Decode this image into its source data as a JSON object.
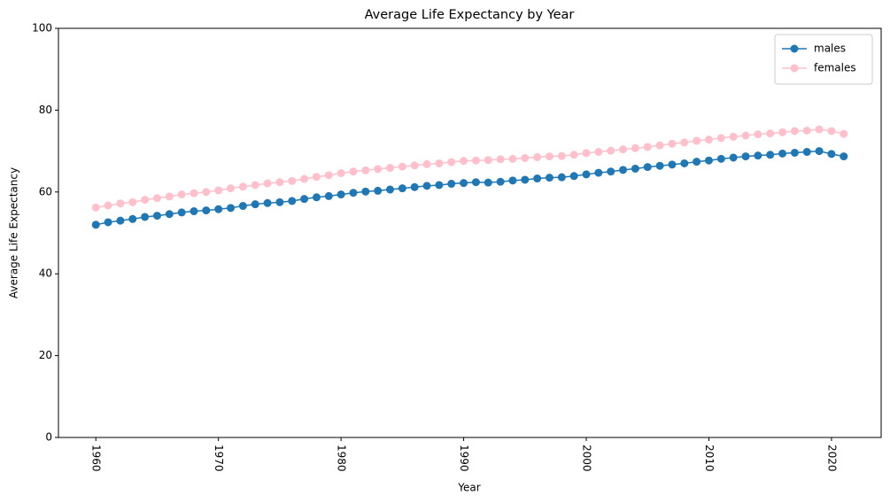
{
  "chart_data": {
    "type": "line",
    "title": "Average Life Expectancy by Year",
    "xlabel": "Year",
    "ylabel": "Average Life Expectancy",
    "x": [
      1960,
      1961,
      1962,
      1963,
      1964,
      1965,
      1966,
      1967,
      1968,
      1969,
      1970,
      1971,
      1972,
      1973,
      1974,
      1975,
      1976,
      1977,
      1978,
      1979,
      1980,
      1981,
      1982,
      1983,
      1984,
      1985,
      1986,
      1987,
      1988,
      1989,
      1990,
      1991,
      1992,
      1993,
      1994,
      1995,
      1996,
      1997,
      1998,
      1999,
      2000,
      2001,
      2002,
      2003,
      2004,
      2005,
      2006,
      2007,
      2008,
      2009,
      2010,
      2011,
      2012,
      2013,
      2014,
      2015,
      2016,
      2017,
      2018,
      2019,
      2020,
      2021
    ],
    "series": [
      {
        "name": "males",
        "color": "#1f77b4",
        "values": [
          52.0,
          52.6,
          53.0,
          53.4,
          53.9,
          54.2,
          54.6,
          55.0,
          55.3,
          55.5,
          55.8,
          56.1,
          56.6,
          57.0,
          57.3,
          57.5,
          57.8,
          58.3,
          58.7,
          59.0,
          59.4,
          59.8,
          60.1,
          60.3,
          60.6,
          60.9,
          61.2,
          61.5,
          61.7,
          62.0,
          62.2,
          62.4,
          62.3,
          62.5,
          62.8,
          63.0,
          63.3,
          63.5,
          63.6,
          63.9,
          64.3,
          64.7,
          65.0,
          65.4,
          65.7,
          66.1,
          66.4,
          66.7,
          67.0,
          67.4,
          67.7,
          68.1,
          68.4,
          68.7,
          68.9,
          69.1,
          69.4,
          69.6,
          69.8,
          70.0,
          69.3,
          68.7
        ]
      },
      {
        "name": "females",
        "color": "#ffc0cb",
        "values": [
          56.2,
          56.7,
          57.2,
          57.5,
          58.1,
          58.5,
          58.9,
          59.4,
          59.7,
          60.0,
          60.4,
          60.9,
          61.3,
          61.7,
          62.1,
          62.4,
          62.7,
          63.2,
          63.7,
          64.1,
          64.6,
          65.0,
          65.3,
          65.6,
          65.9,
          66.2,
          66.5,
          66.8,
          67.0,
          67.3,
          67.6,
          67.7,
          67.8,
          68.0,
          68.1,
          68.3,
          68.5,
          68.7,
          68.8,
          69.1,
          69.5,
          69.8,
          70.1,
          70.4,
          70.7,
          71.0,
          71.4,
          71.8,
          72.1,
          72.5,
          72.8,
          73.2,
          73.5,
          73.8,
          74.1,
          74.3,
          74.6,
          74.9,
          75.0,
          75.3,
          74.9,
          74.2
        ]
      }
    ],
    "xlim": [
      1956.95,
      2024.05
    ],
    "xticks": [
      1960,
      1970,
      1980,
      1990,
      2000,
      2010,
      2020
    ],
    "ylim": [
      0,
      100
    ],
    "yticks": [
      0,
      20,
      40,
      60,
      80,
      100
    ],
    "legend": "upper right"
  }
}
